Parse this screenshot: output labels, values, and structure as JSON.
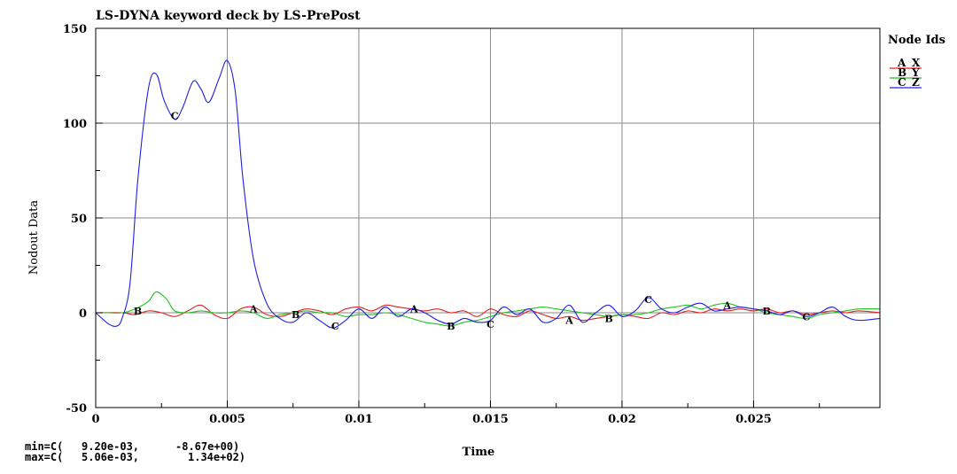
{
  "chart_data": {
    "type": "line",
    "title": "LS-DYNA keyword deck by LS-PrePost",
    "xlabel": "Time",
    "ylabel": "Nodout Data",
    "xlim": [
      0,
      0.0298
    ],
    "ylim": [
      -50,
      150
    ],
    "xticks": [
      0,
      0.005,
      0.01,
      0.015,
      0.02,
      0.025
    ],
    "xtick_labels": [
      "0",
      "0.005",
      "0.01",
      "0.015",
      "0.02",
      "0.025"
    ],
    "yticks": [
      -50,
      0,
      50,
      100,
      150
    ],
    "ytick_labels": [
      "-50",
      "0",
      "50",
      "100",
      "150"
    ],
    "grid": true,
    "legend": {
      "title": "Node Ids",
      "placement": "right",
      "entries": [
        {
          "letter": "A",
          "name": "X",
          "color": "#e02020"
        },
        {
          "letter": "B",
          "name": "Y",
          "color": "#20c020"
        },
        {
          "letter": "C",
          "name": "Z",
          "color": "#2020e0"
        }
      ]
    },
    "series": [
      {
        "name": "X",
        "letter": "A",
        "color": "#e02020",
        "x": [
          0,
          0.001,
          0.0015,
          0.002,
          0.0025,
          0.003,
          0.0035,
          0.004,
          0.0045,
          0.005,
          0.0055,
          0.006,
          0.0065,
          0.007,
          0.0075,
          0.008,
          0.0085,
          0.009,
          0.0095,
          0.01,
          0.0105,
          0.011,
          0.0115,
          0.012,
          0.0125,
          0.013,
          0.0135,
          0.014,
          0.0145,
          0.015,
          0.0155,
          0.016,
          0.0165,
          0.017,
          0.0175,
          0.018,
          0.0185,
          0.019,
          0.0195,
          0.02,
          0.0205,
          0.021,
          0.0215,
          0.022,
          0.0225,
          0.023,
          0.0235,
          0.024,
          0.0245,
          0.025,
          0.0255,
          0.026,
          0.0265,
          0.027,
          0.0275,
          0.028,
          0.0285,
          0.029,
          0.0298
        ],
        "y": [
          0,
          0,
          -1,
          1,
          0,
          -2,
          1,
          4,
          -1,
          -3,
          2,
          3,
          -1,
          -2,
          0,
          2,
          1,
          -1,
          2,
          3,
          1,
          4,
          3,
          2,
          1,
          2,
          0,
          1,
          -2,
          2,
          -1,
          -2,
          1,
          -1,
          -3,
          -2,
          -4,
          -3,
          -2,
          -1,
          -2,
          -3,
          0,
          -1,
          1,
          0,
          2,
          1,
          2,
          1,
          2,
          0,
          1,
          -1,
          0,
          1,
          0,
          1,
          0
        ]
      },
      {
        "name": "Y",
        "letter": "B",
        "color": "#20c020",
        "x": [
          0,
          0.0005,
          0.001,
          0.0015,
          0.002,
          0.0023,
          0.0027,
          0.003,
          0.0035,
          0.004,
          0.0045,
          0.005,
          0.0055,
          0.006,
          0.0065,
          0.007,
          0.0075,
          0.008,
          0.0085,
          0.009,
          0.0095,
          0.01,
          0.0105,
          0.011,
          0.0115,
          0.012,
          0.0125,
          0.013,
          0.0135,
          0.014,
          0.0145,
          0.015,
          0.0155,
          0.016,
          0.0165,
          0.017,
          0.0175,
          0.018,
          0.0185,
          0.019,
          0.0195,
          0.02,
          0.0205,
          0.021,
          0.0215,
          0.022,
          0.0225,
          0.023,
          0.0235,
          0.024,
          0.0245,
          0.025,
          0.0255,
          0.026,
          0.0265,
          0.027,
          0.0275,
          0.028,
          0.0285,
          0.029,
          0.0298
        ],
        "y": [
          0,
          0,
          0,
          2,
          6,
          11,
          7,
          1,
          0,
          1,
          0,
          0,
          1,
          0,
          -3,
          -1,
          0,
          1,
          0,
          0,
          -2,
          -1,
          -1,
          0,
          -1,
          -3,
          -5,
          -6,
          -7,
          -5,
          -4,
          -2,
          0,
          1,
          2,
          3,
          2,
          1,
          0,
          -1,
          -2,
          -1,
          -1,
          0,
          2,
          3,
          4,
          2,
          4,
          5,
          3,
          2,
          0,
          -1,
          -2,
          -3,
          -1,
          0,
          1,
          2,
          2
        ]
      },
      {
        "name": "Z",
        "letter": "C",
        "color": "#2020e0",
        "x": [
          0,
          0.0005,
          0.0008,
          0.001,
          0.0013,
          0.0016,
          0.002,
          0.0023,
          0.0026,
          0.003,
          0.0033,
          0.0037,
          0.004,
          0.0043,
          0.0047,
          0.005,
          0.0053,
          0.0056,
          0.006,
          0.0065,
          0.007,
          0.0075,
          0.008,
          0.0085,
          0.009,
          0.0095,
          0.01,
          0.0105,
          0.011,
          0.0115,
          0.012,
          0.0125,
          0.013,
          0.0135,
          0.014,
          0.0145,
          0.015,
          0.0155,
          0.016,
          0.0165,
          0.017,
          0.0175,
          0.018,
          0.0185,
          0.019,
          0.0195,
          0.02,
          0.0205,
          0.021,
          0.0215,
          0.022,
          0.0225,
          0.023,
          0.0235,
          0.024,
          0.0245,
          0.025,
          0.0255,
          0.026,
          0.0265,
          0.027,
          0.0275,
          0.028,
          0.0285,
          0.029,
          0.0298
        ],
        "y": [
          0,
          -6,
          -7,
          -3,
          15,
          70,
          118,
          126,
          112,
          102,
          108,
          122,
          118,
          111,
          124,
          133,
          117,
          70,
          28,
          5,
          -3,
          -5,
          0,
          -4,
          -8,
          -4,
          2,
          -3,
          3,
          -2,
          2,
          0,
          -4,
          -6,
          -3,
          -5,
          -4,
          3,
          -1,
          2,
          -5,
          -3,
          4,
          -5,
          0,
          4,
          -2,
          1,
          8,
          2,
          0,
          3,
          5,
          1,
          2,
          3,
          2,
          1,
          -1,
          1,
          -2,
          0,
          3,
          -2,
          -4,
          -3
        ]
      }
    ],
    "curve_markers": [
      {
        "letter": "B",
        "x": 0.0016,
        "y": 1
      },
      {
        "letter": "C",
        "x": 0.003,
        "y": 104
      },
      {
        "letter": "A",
        "x": 0.006,
        "y": 2
      },
      {
        "letter": "B",
        "x": 0.0076,
        "y": -1
      },
      {
        "letter": "C",
        "x": 0.0091,
        "y": -7
      },
      {
        "letter": "A",
        "x": 0.0121,
        "y": 2
      },
      {
        "letter": "B",
        "x": 0.0135,
        "y": -7
      },
      {
        "letter": "C",
        "x": 0.015,
        "y": -6
      },
      {
        "letter": "A",
        "x": 0.018,
        "y": -4
      },
      {
        "letter": "B",
        "x": 0.0195,
        "y": -3
      },
      {
        "letter": "C",
        "x": 0.021,
        "y": 7
      },
      {
        "letter": "A",
        "x": 0.024,
        "y": 4
      },
      {
        "letter": "B",
        "x": 0.0255,
        "y": 1
      },
      {
        "letter": "C",
        "x": 0.027,
        "y": -2
      }
    ],
    "minmax": {
      "min_label": "min=C(",
      "min_x": "9.20e-03,",
      "min_y": "-8.67e+00)",
      "max_label": "max=C(",
      "max_x": "5.06e-03,",
      "max_y": "1.34e+02)"
    }
  }
}
